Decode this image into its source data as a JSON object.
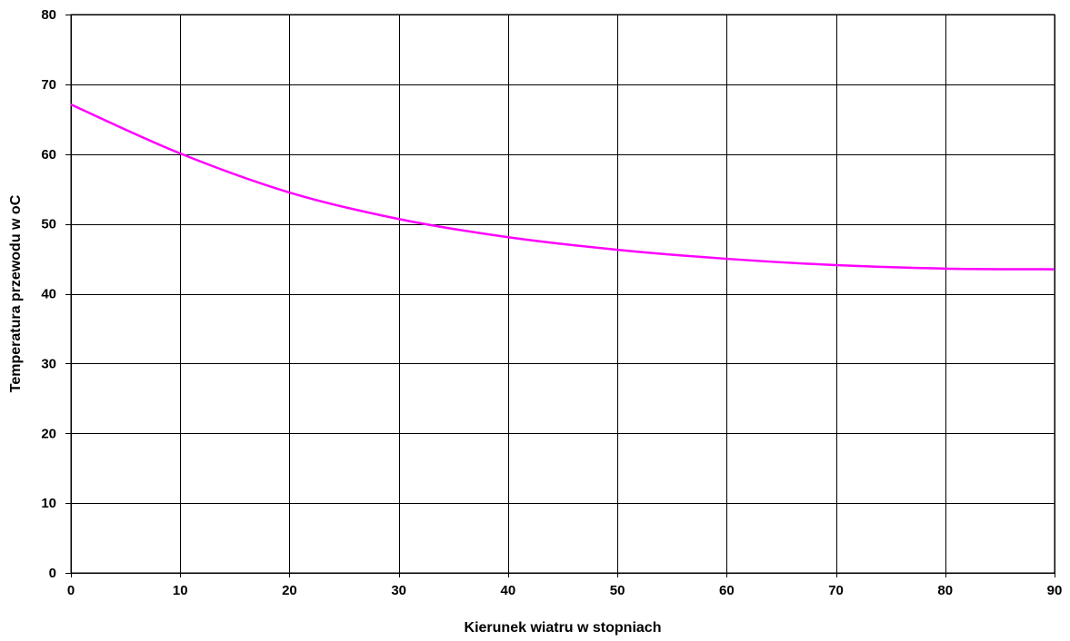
{
  "chart_data": {
    "type": "line",
    "title": "",
    "xlabel": "Kierunek wiatru w stopniach",
    "ylabel": "Temperatura przewodu w oC",
    "xlim": [
      0,
      90
    ],
    "ylim": [
      0,
      80
    ],
    "x_ticks": [
      0,
      10,
      20,
      30,
      40,
      50,
      60,
      70,
      80,
      90
    ],
    "y_ticks": [
      0,
      10,
      20,
      30,
      40,
      50,
      60,
      70,
      80
    ],
    "grid": true,
    "legend": "none",
    "series": [
      {
        "color": "#ff00ff",
        "x": [
          0,
          10,
          20,
          30,
          40,
          50,
          60,
          70,
          80,
          90
        ],
        "y": [
          67.1,
          60.1,
          54.5,
          50.7,
          48.1,
          46.3,
          45.0,
          44.1,
          43.6,
          43.5
        ]
      }
    ]
  }
}
